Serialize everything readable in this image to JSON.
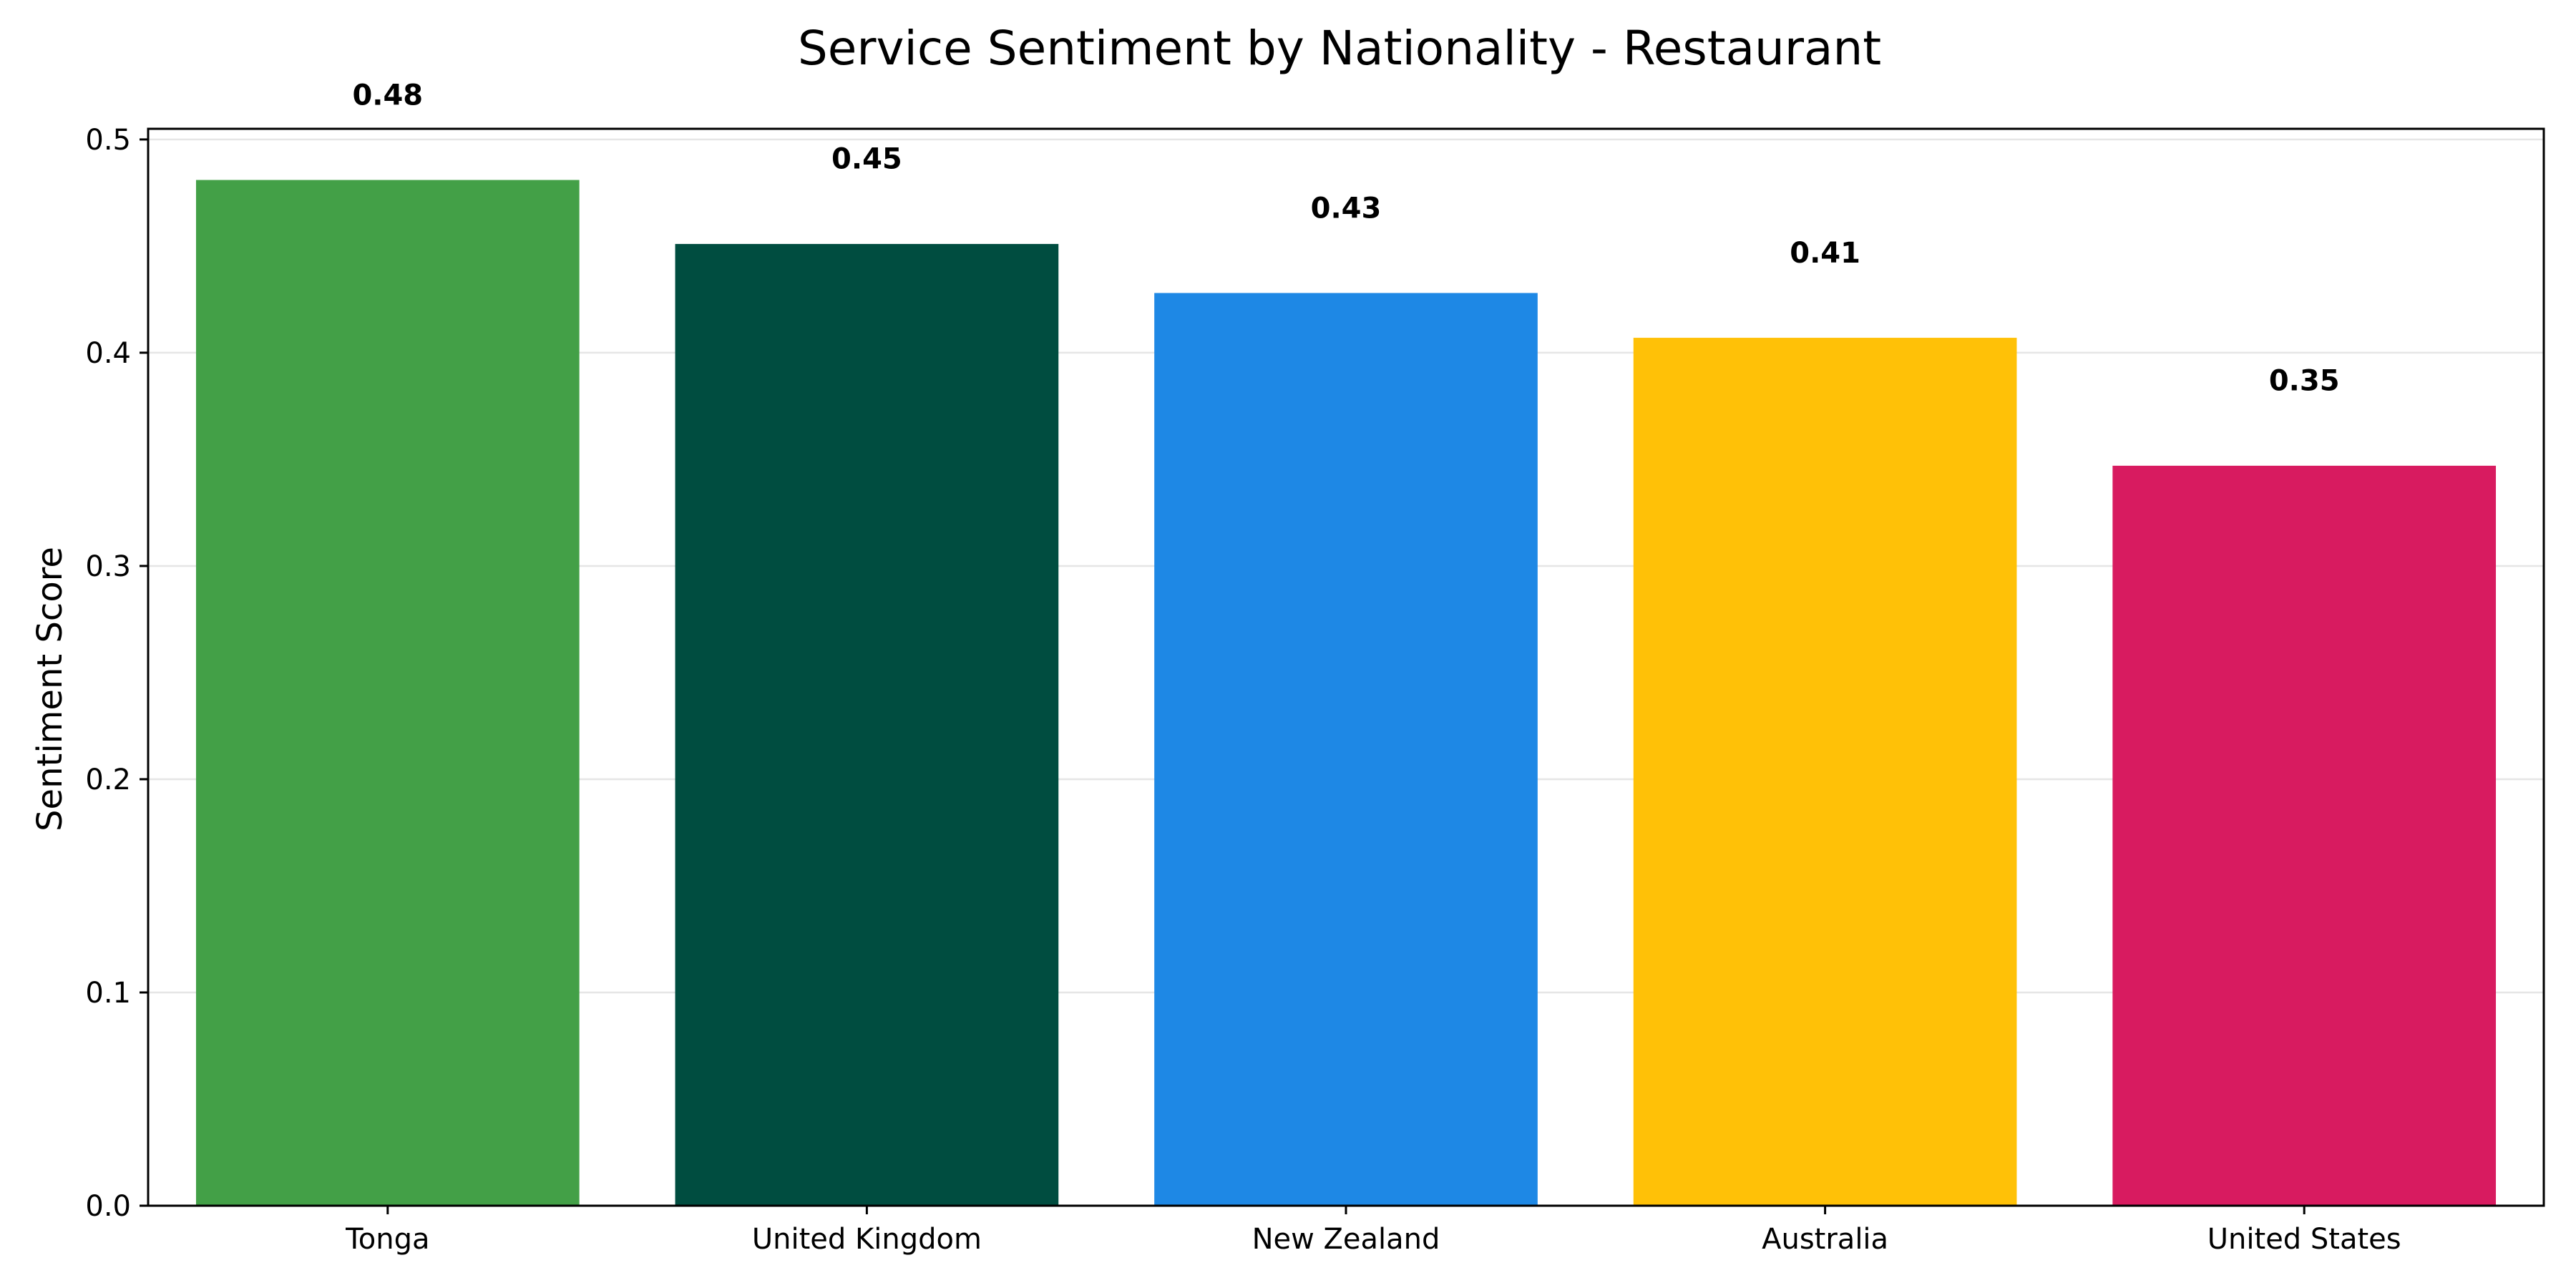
{
  "chart_data": {
    "type": "bar",
    "title": "Service Sentiment by Nationality - Restaurant",
    "xlabel": "",
    "ylabel": "Sentiment Score",
    "categories": [
      "Tonga",
      "United Kingdom",
      "New Zealand",
      "Australia",
      "United States"
    ],
    "values": [
      0.481,
      0.451,
      0.428,
      0.407,
      0.347
    ],
    "value_labels": [
      "0.48",
      "0.45",
      "0.43",
      "0.41",
      "0.35"
    ],
    "colors": [
      "#43a047",
      "#004d40",
      "#1e88e5",
      "#ffc107",
      "#d81b60"
    ],
    "ylim": [
      0.0,
      0.505
    ],
    "yticks": [
      0.0,
      0.1,
      0.2,
      0.3,
      0.4,
      0.5
    ],
    "ytick_labels": [
      "0.0",
      "0.1",
      "0.2",
      "0.3",
      "0.4",
      "0.5"
    ],
    "grid": "horizontal",
    "legend": "none"
  }
}
